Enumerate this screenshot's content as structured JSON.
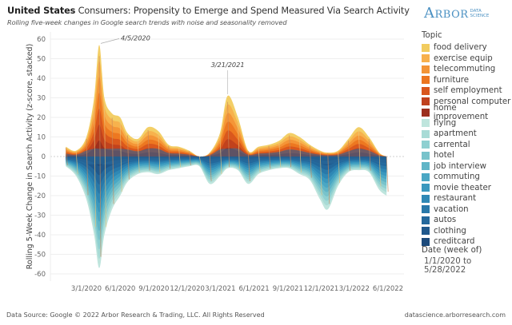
{
  "header": {
    "title_bold": "United States",
    "title_rest": " Consumers: Propensity to Emerge and Spend Measured Via Search Activity",
    "subtitle": "Rolling five-week changes in Google search trends with noise and seasonality removed"
  },
  "logo": {
    "main": "Arbor",
    "sub_line1": "DATA",
    "sub_line2": "SCIENCE"
  },
  "legend": {
    "title": "Topic",
    "items": [
      {
        "label": "food delivery",
        "color": "#f2cc5f"
      },
      {
        "label": "exercise equip",
        "color": "#f7b04c"
      },
      {
        "label": "telecommuting",
        "color": "#f39436"
      },
      {
        "label": "furniture",
        "color": "#ec7620"
      },
      {
        "label": "self employment",
        "color": "#d9561d"
      },
      {
        "label": "personal computer",
        "color": "#c0411e"
      },
      {
        "label": "home improvement",
        "color": "#9c2f1e"
      },
      {
        "label": "flying",
        "color": "#bfe5dd"
      },
      {
        "label": "apartment",
        "color": "#a8dbd6"
      },
      {
        "label": "carrental",
        "color": "#8fd0d1"
      },
      {
        "label": "hotel",
        "color": "#78c3cb"
      },
      {
        "label": "job interview",
        "color": "#60b5c7"
      },
      {
        "label": "commuting",
        "color": "#4aa7c4"
      },
      {
        "label": "movie theater",
        "color": "#3a98be"
      },
      {
        "label": "restaurant",
        "color": "#2f88b5"
      },
      {
        "label": "vacation",
        "color": "#2878a9"
      },
      {
        "label": "autos",
        "color": "#23689c"
      },
      {
        "label": "clothing",
        "color": "#1f588c"
      },
      {
        "label": "creditcard",
        "color": "#1c4a7b"
      }
    ]
  },
  "date_filter": {
    "title": "Date (week of)",
    "range": "1/1/2020 to 5/28/2022"
  },
  "footer": {
    "source": "Data Source: Google © 2022 Arbor Research & Trading, LLC. All Rights Reserved",
    "url": "datascience.arborresearch.com"
  },
  "chart_data": {
    "type": "area",
    "stacked": true,
    "title": "United States Consumers: Propensity to Emerge and Spend Measured Via Search Activity",
    "subtitle": "Rolling five-week changes in Google search trends with noise and seasonality removed",
    "xlabel": "",
    "ylabel": "Rolling 5-Week Change in Search Activity (z-score, stacked)",
    "ylim": [
      -62,
      62
    ],
    "yticks": [
      60,
      50,
      40,
      30,
      20,
      10,
      0,
      -10,
      -20,
      -30,
      -40,
      -50,
      -60
    ],
    "xticks": [
      "3/1/2020",
      "6/1/2020",
      "9/1/2020",
      "12/1/2020",
      "3/1/2021",
      "6/1/2021",
      "9/1/2021",
      "12/1/2021",
      "3/1/2022",
      "6/1/2022"
    ],
    "grid": true,
    "legend_position": "right",
    "annotations": [
      {
        "label": "4/5/2020",
        "x": "2020-04-05",
        "y": 57
      },
      {
        "label": "3/21/2021",
        "x": "2021-03-21",
        "y": 31
      }
    ],
    "x": [
      "2020-01-05",
      "2020-02-02",
      "2020-03-01",
      "2020-03-22",
      "2020-04-05",
      "2020-04-19",
      "2020-05-10",
      "2020-06-01",
      "2020-06-21",
      "2020-07-19",
      "2020-08-16",
      "2020-09-13",
      "2020-10-11",
      "2020-11-08",
      "2020-12-06",
      "2021-01-03",
      "2021-01-31",
      "2021-02-28",
      "2021-03-21",
      "2021-04-18",
      "2021-05-16",
      "2021-06-13",
      "2021-07-11",
      "2021-08-08",
      "2021-09-05",
      "2021-10-03",
      "2021-10-31",
      "2021-11-28",
      "2021-12-19",
      "2022-01-16",
      "2022-02-13",
      "2022-03-13",
      "2022-04-10",
      "2022-05-08",
      "2022-05-28"
    ],
    "positive_total": [
      5,
      3,
      10,
      30,
      57,
      30,
      22,
      20,
      12,
      9,
      15,
      13,
      6,
      5,
      3,
      0,
      2,
      12,
      31,
      20,
      3,
      5,
      6,
      8,
      12,
      10,
      6,
      3,
      2,
      3,
      9,
      15,
      10,
      2,
      0
    ],
    "negative_total": [
      -5,
      -10,
      -22,
      -40,
      -57,
      -40,
      -27,
      -20,
      -13,
      -9,
      -8,
      -9,
      -7,
      -6,
      -5,
      -5,
      -14,
      -10,
      -6,
      -7,
      -14,
      -9,
      -7,
      -6,
      -6,
      -9,
      -12,
      -22,
      -27,
      -15,
      -8,
      -7,
      -8,
      -17,
      -20
    ],
    "positive_series": [
      "food delivery",
      "exercise equip",
      "telecommuting",
      "furniture",
      "self employment",
      "personal computer",
      "home improvement"
    ],
    "negative_series": [
      "flying",
      "apartment",
      "carrental",
      "hotel",
      "job interview",
      "commuting",
      "movie theater",
      "restaurant",
      "vacation",
      "autos",
      "clothing",
      "creditcard"
    ]
  }
}
